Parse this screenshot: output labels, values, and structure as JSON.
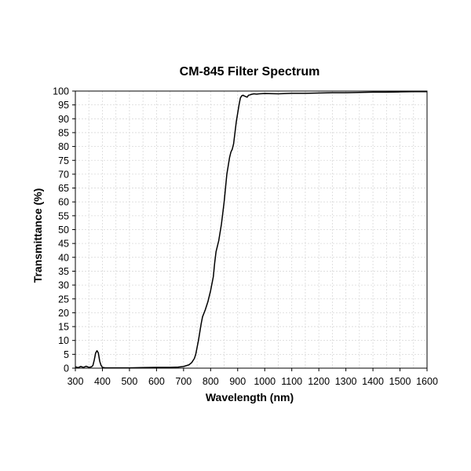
{
  "chart_data": {
    "type": "line",
    "title": "CM-845 Filter Spectrum",
    "xlabel": "Wavelength (nm)",
    "ylabel": "Transmittance (%)",
    "xlim": [
      300,
      1600
    ],
    "ylim": [
      0,
      100
    ],
    "x_ticks": [
      300,
      400,
      500,
      600,
      700,
      800,
      900,
      1000,
      1100,
      1200,
      1300,
      1400,
      1500,
      1600
    ],
    "y_ticks": [
      0,
      5,
      10,
      15,
      20,
      25,
      30,
      35,
      40,
      45,
      50,
      55,
      60,
      65,
      70,
      75,
      80,
      85,
      90,
      95,
      100
    ],
    "grid": true,
    "legend": "none",
    "line_color": "#000000",
    "series": [
      {
        "x": [
          300,
          310,
          320,
          330,
          340,
          350,
          360,
          365,
          370,
          375,
          380,
          385,
          390,
          395,
          400,
          410,
          420,
          440,
          500,
          550,
          600,
          650,
          680,
          700,
          720,
          730,
          740,
          745,
          750,
          755,
          760,
          765,
          770,
          780,
          790,
          800,
          810,
          815,
          820,
          825,
          830,
          840,
          850,
          855,
          860,
          865,
          870,
          875,
          880,
          885,
          890,
          895,
          900,
          905,
          910,
          915,
          920,
          925,
          930,
          935,
          940,
          945,
          950,
          955,
          960,
          970,
          980,
          1000,
          1050,
          1100,
          1150,
          1200,
          1250,
          1300,
          1350,
          1400,
          1450,
          1500,
          1550,
          1600
        ],
        "y": [
          0.5,
          0.2,
          0.6,
          0.3,
          0.7,
          0.3,
          0.5,
          1,
          3,
          5.5,
          6.3,
          5.5,
          2.5,
          1,
          0.3,
          0.1,
          0.1,
          0.1,
          0.1,
          0.2,
          0.3,
          0.3,
          0.4,
          0.6,
          1.2,
          2,
          3.5,
          5,
          7.5,
          10,
          13,
          16,
          18.5,
          21,
          24,
          28,
          33,
          38,
          42,
          44,
          46,
          52,
          60,
          65,
          70,
          73,
          76,
          78,
          79,
          81,
          85,
          89,
          92,
          95,
          97.5,
          98.3,
          98.5,
          98.2,
          98,
          97.8,
          98.5,
          98.6,
          98.8,
          98.9,
          99.0,
          98.9,
          99.0,
          99.1,
          99.0,
          99.2,
          99.2,
          99.3,
          99.4,
          99.4,
          99.5,
          99.6,
          99.6,
          99.7,
          99.8,
          99.8
        ]
      }
    ]
  }
}
